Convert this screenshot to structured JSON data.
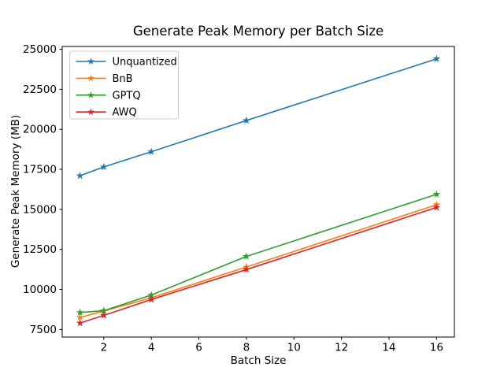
{
  "chart_data": {
    "type": "line",
    "title": "Generate Peak Memory per Batch Size",
    "xlabel": "Batch Size",
    "ylabel": "Generate Peak Memory (MB)",
    "x": [
      1,
      2,
      4,
      8,
      16
    ],
    "series": [
      {
        "name": "Unquantized",
        "color": "#1f77b4",
        "values": [
          17100,
          17650,
          18600,
          20550,
          24400
        ]
      },
      {
        "name": "BnB",
        "color": "#ff7f0e",
        "values": [
          8250,
          8650,
          9480,
          11400,
          15290
        ]
      },
      {
        "name": "GPTQ",
        "color": "#2ca02c",
        "values": [
          8560,
          8670,
          9650,
          12060,
          15940
        ]
      },
      {
        "name": "AWQ",
        "color": "#d62728",
        "values": [
          7900,
          8380,
          9370,
          11240,
          15120
        ]
      }
    ],
    "xticks": [
      2,
      4,
      6,
      8,
      10,
      12,
      14,
      16
    ],
    "yticks": [
      7500,
      10000,
      12500,
      15000,
      17500,
      20000,
      22500,
      25000
    ],
    "xlim": [
      0.25,
      16.75
    ],
    "ylim": [
      7025,
      25175
    ],
    "legend_position": "upper left",
    "legend_entries": [
      "Unquantized",
      "BnB",
      "GPTQ",
      "AWQ"
    ],
    "marker": "star",
    "grid": false,
    "background_color": "#ffffff",
    "axis_color": "#000000",
    "legend_border_color": "#cccccc"
  }
}
